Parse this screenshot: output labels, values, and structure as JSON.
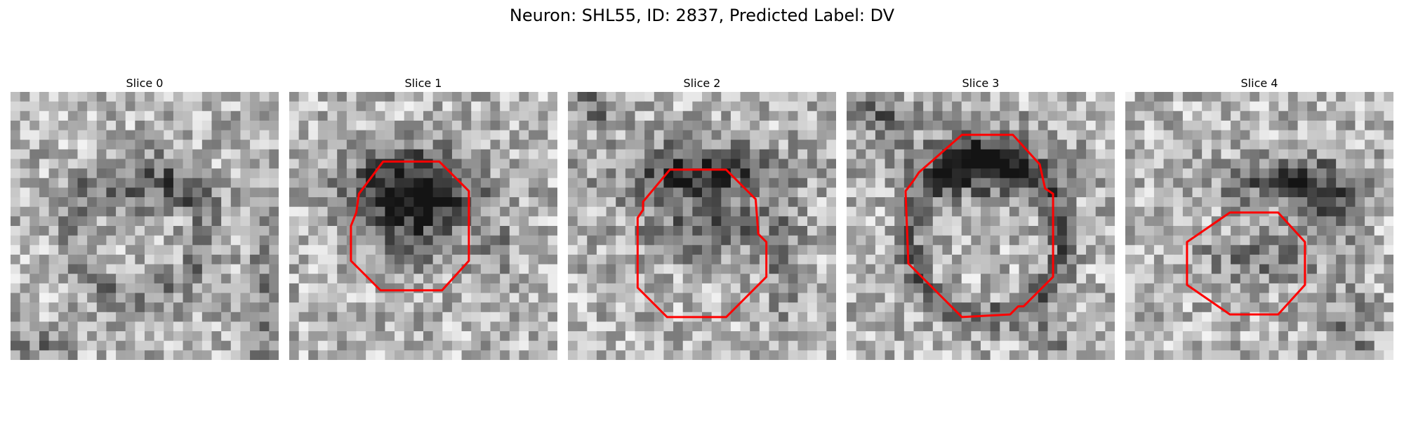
{
  "figure": {
    "title": "Neuron: SHL55, ID: 2837, Predicted Label: DV"
  },
  "slices": [
    {
      "title": "Slice 0"
    },
    {
      "title": "Slice 1"
    },
    {
      "title": "Slice 2"
    },
    {
      "title": "Slice 3"
    },
    {
      "title": "Slice 4"
    }
  ],
  "colors": {
    "contour": "#ff0000",
    "background": "#ffffff",
    "text": "#000000"
  }
}
